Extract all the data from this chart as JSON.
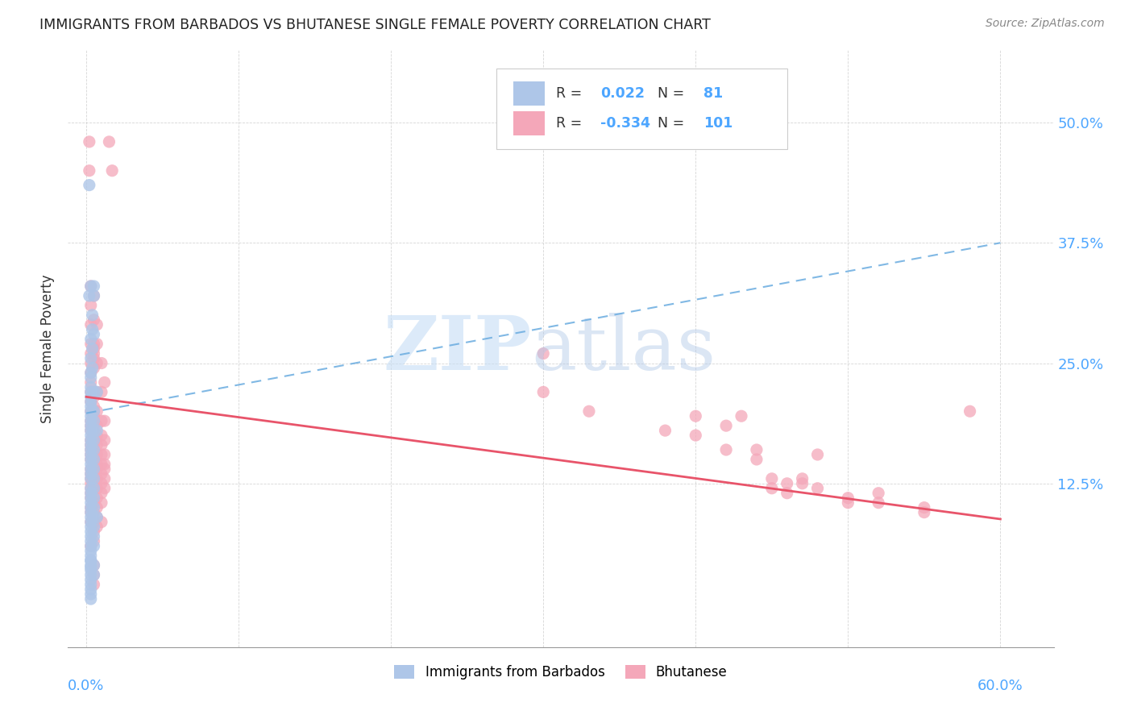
{
  "title": "IMMIGRANTS FROM BARBADOS VS BHUTANESE SINGLE FEMALE POVERTY CORRELATION CHART",
  "source": "Source: ZipAtlas.com",
  "ylabel": "Single Female Poverty",
  "yticks_labels": [
    "50.0%",
    "37.5%",
    "25.0%",
    "12.5%"
  ],
  "ytick_vals": [
    0.5,
    0.375,
    0.25,
    0.125
  ],
  "xtick_vals": [
    0.0,
    0.1,
    0.2,
    0.3,
    0.4,
    0.5,
    0.6
  ],
  "xlim": [
    -0.012,
    0.635
  ],
  "ylim": [
    -0.045,
    0.575
  ],
  "barbados_color": "#aec6e8",
  "bhutanese_color": "#f4a7b9",
  "barbados_trend_color": "#6aace0",
  "bhutanese_trend_color": "#e8546a",
  "barbados_trend_x": [
    0.0,
    0.6
  ],
  "barbados_trend_y": [
    0.198,
    0.375
  ],
  "bhutanese_trend_x": [
    0.0,
    0.6
  ],
  "bhutanese_trend_y": [
    0.215,
    0.088
  ],
  "barbados_scatter": [
    [
      0.002,
      0.435
    ],
    [
      0.002,
      0.32
    ],
    [
      0.003,
      0.33
    ],
    [
      0.004,
      0.3
    ],
    [
      0.004,
      0.285
    ],
    [
      0.003,
      0.275
    ],
    [
      0.004,
      0.265
    ],
    [
      0.003,
      0.255
    ],
    [
      0.004,
      0.245
    ],
    [
      0.003,
      0.24
    ],
    [
      0.003,
      0.235
    ],
    [
      0.003,
      0.225
    ],
    [
      0.003,
      0.22
    ],
    [
      0.003,
      0.215
    ],
    [
      0.003,
      0.21
    ],
    [
      0.003,
      0.205
    ],
    [
      0.003,
      0.2
    ],
    [
      0.003,
      0.195
    ],
    [
      0.003,
      0.19
    ],
    [
      0.003,
      0.185
    ],
    [
      0.003,
      0.18
    ],
    [
      0.003,
      0.175
    ],
    [
      0.003,
      0.17
    ],
    [
      0.003,
      0.165
    ],
    [
      0.003,
      0.16
    ],
    [
      0.003,
      0.155
    ],
    [
      0.003,
      0.15
    ],
    [
      0.003,
      0.145
    ],
    [
      0.003,
      0.14
    ],
    [
      0.003,
      0.135
    ],
    [
      0.003,
      0.13
    ],
    [
      0.003,
      0.12
    ],
    [
      0.003,
      0.115
    ],
    [
      0.003,
      0.11
    ],
    [
      0.003,
      0.105
    ],
    [
      0.003,
      0.1
    ],
    [
      0.003,
      0.095
    ],
    [
      0.003,
      0.09
    ],
    [
      0.003,
      0.085
    ],
    [
      0.003,
      0.08
    ],
    [
      0.003,
      0.075
    ],
    [
      0.003,
      0.07
    ],
    [
      0.003,
      0.065
    ],
    [
      0.003,
      0.06
    ],
    [
      0.003,
      0.055
    ],
    [
      0.003,
      0.05
    ],
    [
      0.003,
      0.045
    ],
    [
      0.003,
      0.04
    ],
    [
      0.003,
      0.035
    ],
    [
      0.003,
      0.03
    ],
    [
      0.003,
      0.025
    ],
    [
      0.003,
      0.02
    ],
    [
      0.003,
      0.015
    ],
    [
      0.003,
      0.01
    ],
    [
      0.003,
      0.005
    ],
    [
      0.005,
      0.33
    ],
    [
      0.005,
      0.32
    ],
    [
      0.005,
      0.28
    ],
    [
      0.005,
      0.22
    ],
    [
      0.005,
      0.2
    ],
    [
      0.005,
      0.19
    ],
    [
      0.005,
      0.18
    ],
    [
      0.005,
      0.17
    ],
    [
      0.005,
      0.16
    ],
    [
      0.005,
      0.15
    ],
    [
      0.005,
      0.14
    ],
    [
      0.005,
      0.13
    ],
    [
      0.005,
      0.12
    ],
    [
      0.005,
      0.11
    ],
    [
      0.005,
      0.1
    ],
    [
      0.005,
      0.09
    ],
    [
      0.005,
      0.08
    ],
    [
      0.005,
      0.07
    ],
    [
      0.005,
      0.06
    ],
    [
      0.005,
      0.04
    ],
    [
      0.005,
      0.03
    ],
    [
      0.007,
      0.22
    ],
    [
      0.007,
      0.18
    ],
    [
      0.007,
      0.09
    ],
    [
      0.003,
      0.045
    ],
    [
      0.003,
      0.038
    ]
  ],
  "bhutanese_scatter": [
    [
      0.002,
      0.48
    ],
    [
      0.002,
      0.45
    ],
    [
      0.003,
      0.33
    ],
    [
      0.003,
      0.31
    ],
    [
      0.003,
      0.29
    ],
    [
      0.003,
      0.27
    ],
    [
      0.003,
      0.26
    ],
    [
      0.003,
      0.25
    ],
    [
      0.003,
      0.24
    ],
    [
      0.003,
      0.23
    ],
    [
      0.003,
      0.22
    ],
    [
      0.003,
      0.21
    ],
    [
      0.003,
      0.2
    ],
    [
      0.003,
      0.19
    ],
    [
      0.003,
      0.185
    ],
    [
      0.003,
      0.18
    ],
    [
      0.003,
      0.17
    ],
    [
      0.003,
      0.165
    ],
    [
      0.003,
      0.16
    ],
    [
      0.003,
      0.155
    ],
    [
      0.003,
      0.15
    ],
    [
      0.003,
      0.14
    ],
    [
      0.003,
      0.135
    ],
    [
      0.003,
      0.13
    ],
    [
      0.003,
      0.125
    ],
    [
      0.003,
      0.12
    ],
    [
      0.003,
      0.115
    ],
    [
      0.003,
      0.11
    ],
    [
      0.003,
      0.1
    ],
    [
      0.003,
      0.095
    ],
    [
      0.003,
      0.085
    ],
    [
      0.003,
      0.06
    ],
    [
      0.005,
      0.32
    ],
    [
      0.005,
      0.295
    ],
    [
      0.005,
      0.27
    ],
    [
      0.005,
      0.265
    ],
    [
      0.005,
      0.26
    ],
    [
      0.005,
      0.255
    ],
    [
      0.005,
      0.245
    ],
    [
      0.005,
      0.22
    ],
    [
      0.005,
      0.215
    ],
    [
      0.005,
      0.205
    ],
    [
      0.005,
      0.2
    ],
    [
      0.005,
      0.195
    ],
    [
      0.005,
      0.19
    ],
    [
      0.005,
      0.185
    ],
    [
      0.005,
      0.175
    ],
    [
      0.005,
      0.17
    ],
    [
      0.005,
      0.165
    ],
    [
      0.005,
      0.155
    ],
    [
      0.005,
      0.15
    ],
    [
      0.005,
      0.145
    ],
    [
      0.005,
      0.135
    ],
    [
      0.005,
      0.125
    ],
    [
      0.005,
      0.12
    ],
    [
      0.005,
      0.105
    ],
    [
      0.005,
      0.095
    ],
    [
      0.005,
      0.085
    ],
    [
      0.005,
      0.075
    ],
    [
      0.005,
      0.065
    ],
    [
      0.005,
      0.04
    ],
    [
      0.005,
      0.03
    ],
    [
      0.005,
      0.02
    ],
    [
      0.007,
      0.29
    ],
    [
      0.007,
      0.27
    ],
    [
      0.007,
      0.25
    ],
    [
      0.007,
      0.22
    ],
    [
      0.007,
      0.2
    ],
    [
      0.007,
      0.185
    ],
    [
      0.007,
      0.175
    ],
    [
      0.007,
      0.165
    ],
    [
      0.007,
      0.155
    ],
    [
      0.007,
      0.145
    ],
    [
      0.007,
      0.14
    ],
    [
      0.007,
      0.13
    ],
    [
      0.007,
      0.12
    ],
    [
      0.007,
      0.11
    ],
    [
      0.007,
      0.1
    ],
    [
      0.007,
      0.09
    ],
    [
      0.007,
      0.08
    ],
    [
      0.01,
      0.25
    ],
    [
      0.01,
      0.22
    ],
    [
      0.01,
      0.19
    ],
    [
      0.01,
      0.175
    ],
    [
      0.01,
      0.165
    ],
    [
      0.01,
      0.155
    ],
    [
      0.01,
      0.145
    ],
    [
      0.01,
      0.135
    ],
    [
      0.01,
      0.125
    ],
    [
      0.01,
      0.115
    ],
    [
      0.01,
      0.105
    ],
    [
      0.01,
      0.085
    ],
    [
      0.012,
      0.23
    ],
    [
      0.012,
      0.19
    ],
    [
      0.012,
      0.17
    ],
    [
      0.012,
      0.155
    ],
    [
      0.012,
      0.145
    ],
    [
      0.012,
      0.14
    ],
    [
      0.012,
      0.13
    ],
    [
      0.012,
      0.12
    ],
    [
      0.015,
      0.48
    ],
    [
      0.017,
      0.45
    ],
    [
      0.3,
      0.26
    ],
    [
      0.3,
      0.22
    ],
    [
      0.33,
      0.2
    ],
    [
      0.38,
      0.18
    ],
    [
      0.4,
      0.195
    ],
    [
      0.4,
      0.175
    ],
    [
      0.42,
      0.185
    ],
    [
      0.42,
      0.16
    ],
    [
      0.43,
      0.195
    ],
    [
      0.44,
      0.16
    ],
    [
      0.44,
      0.15
    ],
    [
      0.45,
      0.13
    ],
    [
      0.45,
      0.12
    ],
    [
      0.46,
      0.125
    ],
    [
      0.46,
      0.115
    ],
    [
      0.47,
      0.13
    ],
    [
      0.47,
      0.125
    ],
    [
      0.48,
      0.155
    ],
    [
      0.48,
      0.12
    ],
    [
      0.5,
      0.11
    ],
    [
      0.5,
      0.105
    ],
    [
      0.52,
      0.115
    ],
    [
      0.52,
      0.105
    ],
    [
      0.55,
      0.1
    ],
    [
      0.55,
      0.095
    ],
    [
      0.58,
      0.2
    ]
  ]
}
